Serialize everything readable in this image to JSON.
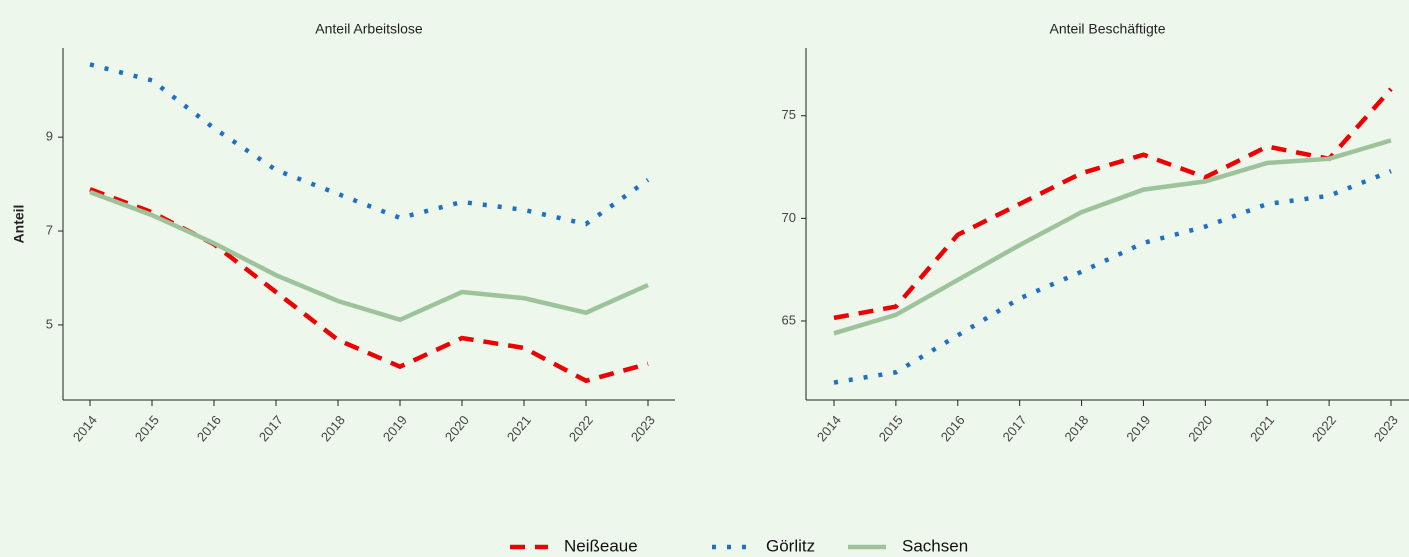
{
  "chart_data": [
    {
      "type": "line",
      "title": "Anteil Arbeitslose",
      "y_label": "Anteil",
      "categories": [
        "2014",
        "2015",
        "2016",
        "2017",
        "2018",
        "2019",
        "2020",
        "2021",
        "2022",
        "2023"
      ],
      "ylim": [
        3.4,
        10.9
      ],
      "yticks": [
        5,
        7,
        9
      ],
      "series": [
        {
          "name": "Neißeaue",
          "color": "#ee0000",
          "linestyle": "dashed",
          "values": [
            7.89,
            7.4,
            6.72,
            5.7,
            4.68,
            4.11,
            4.72,
            4.51,
            3.81,
            4.17
          ]
        },
        {
          "name": "Görlitz",
          "color": "#1f6fc4",
          "linestyle": "dotted",
          "values": [
            10.55,
            10.21,
            9.19,
            8.3,
            7.79,
            7.28,
            7.62,
            7.45,
            7.15,
            8.09
          ]
        },
        {
          "name": "Sachsen",
          "color": "#9dc39b",
          "linestyle": "solid",
          "values": [
            7.83,
            7.34,
            6.74,
            6.06,
            5.51,
            5.11,
            5.7,
            5.57,
            5.26,
            5.85
          ]
        }
      ]
    },
    {
      "type": "line",
      "title": "Anteil Beschäftigte",
      "categories": [
        "2014",
        "2015",
        "2016",
        "2017",
        "2018",
        "2019",
        "2020",
        "2021",
        "2022",
        "2023"
      ],
      "ylim": [
        61.15,
        78.3
      ],
      "yticks": [
        65,
        70,
        75
      ],
      "series": [
        {
          "name": "Neißeaue",
          "color": "#ee0000",
          "linestyle": "dashed",
          "values": [
            65.15,
            65.7,
            69.2,
            70.7,
            72.2,
            73.1,
            72.0,
            73.5,
            72.9,
            76.3
          ]
        },
        {
          "name": "Görlitz",
          "color": "#1f6fc4",
          "linestyle": "dotted",
          "values": [
            62.0,
            62.5,
            64.3,
            66.1,
            67.4,
            68.8,
            69.6,
            70.7,
            71.1,
            72.3
          ]
        },
        {
          "name": "Sachsen",
          "color": "#9dc39b",
          "linestyle": "solid",
          "values": [
            64.4,
            65.3,
            67.0,
            68.7,
            70.3,
            71.4,
            71.8,
            72.7,
            72.9,
            73.8
          ]
        }
      ]
    }
  ]
}
